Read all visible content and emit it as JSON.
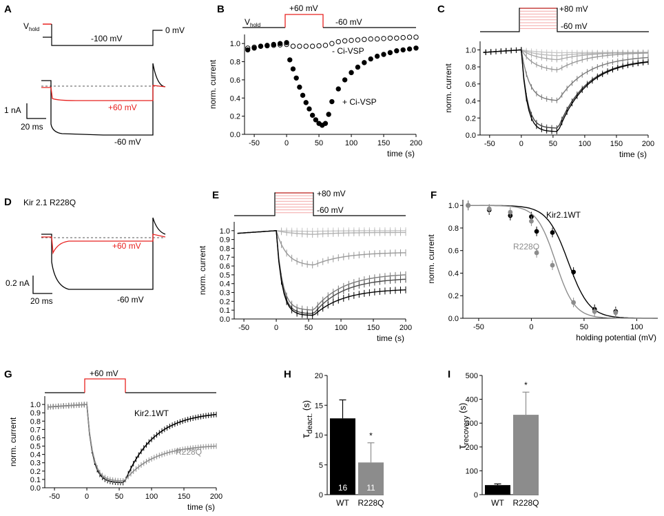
{
  "panels": {
    "A": {
      "letter": "A",
      "vhold_v": "V",
      "vhold_sub": "hold",
      "neg100": "-100 mV",
      "zero": "0 mV",
      "plus60": "+60 mV",
      "minus60": "-60 mV",
      "scale_i": "1 nA",
      "scale_t": "20 ms"
    },
    "B": {
      "letter": "B",
      "vhold_v": "V",
      "vhold_sub": "hold",
      "plus60": "+60 mV",
      "minus60": "-60 mV",
      "minus_label": "- Ci-VSP",
      "plus_label": "+ Ci-VSP"
    },
    "C": {
      "letter": "C",
      "plus80": "+80 mV",
      "minus60": "-60 mV"
    },
    "D": {
      "letter": "D",
      "title": "Kir 2.1 R228Q",
      "plus60": "+60 mV",
      "minus60": "-60 mV",
      "scale_i": "0.2 nA",
      "scale_t": "20 ms"
    },
    "E": {
      "letter": "E",
      "plus80": "+80 mV",
      "minus60": "-60 mV"
    },
    "F": {
      "letter": "F",
      "wt_label": "Kir2.1WT",
      "mut_label": "R228Q"
    },
    "G": {
      "letter": "G",
      "plus60": "+60 mV",
      "wt_label": "Kir2.1WT",
      "mut_label": "R228Q"
    },
    "H": {
      "letter": "H",
      "tau": "τ",
      "tau_sub": "deact.",
      "tau_unit": " (s)"
    },
    "I": {
      "letter": "I",
      "tau": "τ",
      "tau_sub": "recovery",
      "tau_unit": " (s)"
    }
  },
  "colors": {
    "black": "#000000",
    "red": "#e8201e",
    "gray": "#8c8c8c",
    "lightgray": "#b4b4b4",
    "pink": "#f4a6a6"
  },
  "chart_data": [
    {
      "id": "B",
      "type": "scatter",
      "xlabel": "time (s)",
      "ylabel": "norm. current",
      "xlim": [
        -65,
        200
      ],
      "ylim": [
        0,
        1.1
      ],
      "xticks": [
        "-50",
        "0",
        "50",
        "100",
        "150",
        "200"
      ],
      "xtick_values": [
        -50,
        0,
        50,
        100,
        150,
        200
      ],
      "yticks": [
        "0.0",
        "0.2",
        "0.4",
        "0.6",
        "0.8",
        "1.0"
      ],
      "ytick_values": [
        0,
        0.2,
        0.4,
        0.6,
        0.8,
        1.0
      ],
      "series": [
        {
          "name": "- Ci-VSP",
          "marker": "open",
          "x": [
            -60,
            -50,
            -40,
            -30,
            -20,
            -10,
            0,
            10,
            20,
            30,
            40,
            50,
            60,
            70,
            80,
            90,
            100,
            110,
            120,
            130,
            140,
            150,
            160,
            170,
            180,
            190,
            200
          ],
          "y": [
            0.95,
            0.96,
            0.97,
            0.975,
            0.98,
            0.985,
            0.99,
            0.97,
            0.97,
            0.97,
            0.97,
            0.975,
            0.98,
            1.0,
            1.02,
            1.03,
            1.035,
            1.04,
            1.045,
            1.05,
            1.05,
            1.055,
            1.06,
            1.06,
            1.065,
            1.07,
            1.07
          ]
        },
        {
          "name": "+ Ci-VSP",
          "marker": "filled",
          "x": [
            -60,
            -50,
            -40,
            -30,
            -20,
            -10,
            0,
            5,
            10,
            15,
            20,
            25,
            30,
            35,
            40,
            45,
            50,
            55,
            60,
            65,
            70,
            80,
            90,
            100,
            110,
            120,
            130,
            140,
            150,
            160,
            170,
            180,
            190,
            200
          ],
          "y": [
            0.93,
            0.95,
            0.97,
            0.98,
            0.99,
            1.0,
            1.01,
            0.82,
            0.72,
            0.62,
            0.52,
            0.43,
            0.35,
            0.28,
            0.21,
            0.16,
            0.12,
            0.1,
            0.12,
            0.22,
            0.36,
            0.5,
            0.6,
            0.68,
            0.74,
            0.79,
            0.83,
            0.86,
            0.88,
            0.9,
            0.92,
            0.93,
            0.94,
            0.95
          ]
        }
      ]
    },
    {
      "id": "C",
      "type": "line",
      "xlabel": "time (s)",
      "ylabel": "norm. current",
      "xlim": [
        -65,
        200
      ],
      "ylim": [
        0,
        1.1
      ],
      "xticks": [
        "-50",
        "0",
        "50",
        "100",
        "150",
        "200"
      ],
      "xtick_values": [
        -50,
        0,
        50,
        100,
        150,
        200
      ],
      "yticks": [
        "0.0",
        "0.2",
        "0.4",
        "0.6",
        "0.8",
        "1.0"
      ],
      "ytick_values": [
        0,
        0.2,
        0.4,
        0.6,
        0.8,
        1.0
      ],
      "curves_min": [
        0.96,
        0.92,
        0.87,
        0.75,
        0.4,
        0.08,
        0.04
      ],
      "curves_shade": [
        "#c8c8c8",
        "#bbbbbb",
        "#aaaaaa",
        "#999999",
        "#7a7a7a",
        "#3c3c3c",
        "#000000"
      ]
    },
    {
      "id": "E",
      "type": "line",
      "xlabel": "time (s)",
      "ylabel": "norm. current",
      "xlim": [
        -65,
        200
      ],
      "ylim": [
        0,
        1.1
      ],
      "xticks": [
        "-50",
        "0",
        "50",
        "100",
        "150",
        "200"
      ],
      "xtick_values": [
        -50,
        0,
        50,
        100,
        150,
        200
      ],
      "yticks": [
        "0.0",
        "0.1",
        "0.2",
        "0.3",
        "0.4",
        "0.5",
        "0.6",
        "0.7",
        "0.8",
        "0.9",
        "1.0"
      ],
      "ytick_values": [
        0,
        0.1,
        0.2,
        0.3,
        0.4,
        0.5,
        0.6,
        0.7,
        0.8,
        0.9,
        1.0
      ],
      "curves_min": [
        0.99,
        0.95,
        0.6,
        0.1,
        0.06,
        0.04
      ],
      "curves_rec": [
        1.0,
        0.98,
        0.75,
        0.5,
        0.45,
        0.33
      ],
      "curves_shade": [
        "#c8c8c8",
        "#b0b0b0",
        "#999999",
        "#7a7a7a",
        "#4a4a4a",
        "#000000"
      ]
    },
    {
      "id": "F",
      "type": "scatter",
      "xlabel": "holding potential (mV)",
      "ylabel": "norm. current",
      "xlim": [
        -65,
        120
      ],
      "ylim": [
        0,
        1.05
      ],
      "xticks": [
        "-50",
        "0",
        "50",
        "100"
      ],
      "xtick_values": [
        -50,
        0,
        50,
        100
      ],
      "yticks": [
        "0.0",
        "0.2",
        "0.4",
        "0.6",
        "0.8",
        "1.0"
      ],
      "ytick_values": [
        0,
        0.2,
        0.4,
        0.6,
        0.8,
        1.0
      ],
      "series": [
        {
          "name": "Kir2.1WT",
          "x": [
            -60,
            -40,
            -20,
            0,
            5,
            20,
            40,
            60,
            80
          ],
          "y": [
            1.0,
            0.96,
            0.91,
            0.9,
            0.77,
            0.76,
            0.41,
            0.08,
            0.06
          ],
          "v_half": 35,
          "slope": 10
        },
        {
          "name": "R228Q",
          "x": [
            -60,
            -40,
            -20,
            0,
            5,
            20,
            40,
            60,
            80
          ],
          "y": [
            1.0,
            0.97,
            0.94,
            0.86,
            0.58,
            0.47,
            0.14,
            0.06,
            0.05
          ],
          "v_half": 23,
          "slope": 9
        }
      ]
    },
    {
      "id": "G",
      "type": "line",
      "xlabel": "time (s)",
      "ylabel": "norm. current",
      "xlim": [
        -65,
        200
      ],
      "ylim": [
        0,
        1.1
      ],
      "xticks": [
        "-50",
        "0",
        "50",
        "100",
        "150",
        "200"
      ],
      "xtick_values": [
        -50,
        0,
        50,
        100,
        150,
        200
      ],
      "yticks": [
        "0.0",
        "0.1",
        "0.2",
        "0.3",
        "0.4",
        "0.5",
        "0.6",
        "0.7",
        "0.8",
        "0.9",
        "1.0"
      ],
      "ytick_values": [
        0,
        0.1,
        0.2,
        0.3,
        0.4,
        0.5,
        0.6,
        0.7,
        0.8,
        0.9,
        1.0
      ],
      "series": [
        {
          "name": "Kir2.1WT",
          "min": 0.06,
          "rec": 0.88
        },
        {
          "name": "R228Q",
          "min": 0.08,
          "rec": 0.5
        }
      ]
    },
    {
      "id": "H",
      "type": "bar",
      "categories": [
        "WT",
        "R228Q"
      ],
      "values": [
        12.8,
        5.4
      ],
      "errors": [
        3.1,
        3.3
      ],
      "n": [
        "16",
        "11"
      ],
      "ylim": [
        0,
        20
      ],
      "yticks": [
        "0",
        "5",
        "10",
        "15",
        "20"
      ],
      "ytick_values": [
        0,
        5,
        10,
        15,
        20
      ],
      "significance": "*"
    },
    {
      "id": "I",
      "type": "bar",
      "categories": [
        "WT",
        "R228Q"
      ],
      "values": [
        40,
        335
      ],
      "errors": [
        5,
        95
      ],
      "ylim": [
        0,
        500
      ],
      "yticks": [
        "0",
        "100",
        "200",
        "300",
        "400",
        "500"
      ],
      "ytick_values": [
        0,
        100,
        200,
        300,
        400,
        500
      ],
      "significance": "*"
    }
  ]
}
